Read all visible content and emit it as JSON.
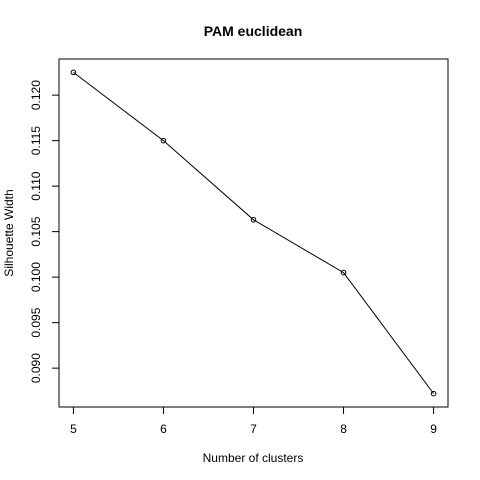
{
  "chart_data": {
    "type": "line",
    "title": "PAM euclidean",
    "xlabel": "Number of clusters",
    "ylabel": "Silhouette Width",
    "x": [
      5,
      6,
      7,
      8,
      9
    ],
    "y": [
      0.1225,
      0.115,
      0.1063,
      0.1005,
      0.0872
    ],
    "xticks": [
      "5",
      "6",
      "7",
      "8",
      "9"
    ],
    "yticks": [
      "0.090",
      "0.095",
      "0.100",
      "0.105",
      "0.110",
      "0.115",
      "0.120"
    ],
    "xlim": [
      4.84,
      9.16
    ],
    "ylim": [
      0.08573,
      0.12397
    ],
    "markers": "open-circle",
    "grid": false,
    "legend": "none"
  }
}
